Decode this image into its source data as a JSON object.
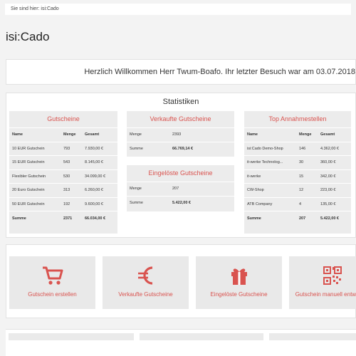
{
  "breadcrumb": "Sie sind hier: isi:Cado",
  "page_title": "isi:Cado",
  "welcome": "Herzlich Willkommen Herr Twum-Boafo. Ihr letzter Besuch war am 03.07.2018",
  "stats": {
    "title": "Statistiken",
    "gutscheine": {
      "title": "Gutscheine",
      "headers": [
        "Name",
        "Menge",
        "Gesamt"
      ],
      "rows": [
        [
          "10 EUR Gutschein",
          "793",
          "7.930,00 €"
        ],
        [
          "15 EUR Gutschein",
          "543",
          "8.145,00 €"
        ],
        [
          "Flexibler Gutschein",
          "530",
          "34.099,00 €"
        ],
        [
          "20 Euro Gutschein",
          "313",
          "6.260,00 €"
        ],
        [
          "50 EUR Gutschein",
          "192",
          "9.600,00 €"
        ]
      ],
      "summary": [
        "Summe",
        "2371",
        "66.034,00 €"
      ]
    },
    "verkaufte": {
      "title": "Verkaufte Gutscheine",
      "rows": [
        [
          "Menge",
          "2393"
        ],
        [
          "Summe",
          "66.769,14 €"
        ]
      ]
    },
    "eingeloeste": {
      "title": "Eingelöste Gutscheine",
      "rows": [
        [
          "Menge",
          "207"
        ],
        [
          "Summe",
          "5.422,00 €"
        ]
      ]
    },
    "annahmestellen": {
      "title": "Top Annahmestellen",
      "headers": [
        "Name",
        "Menge",
        "Gesamt"
      ],
      "rows": [
        [
          "isi:Cado Demo-Shop",
          "146",
          "4.362,00 €"
        ],
        [
          "it-werke Technolog...",
          "30",
          "360,00 €"
        ],
        [
          "it-werke",
          "15",
          "342,00 €"
        ],
        [
          "CW-Shop",
          "12",
          "223,00 €"
        ],
        [
          "ATB Company",
          "4",
          "135,00 €"
        ]
      ],
      "summary": [
        "Summe",
        "207",
        "5.422,00 €"
      ]
    }
  },
  "tiles": [
    {
      "label": "Gutschein erstellen",
      "icon": "cart-icon"
    },
    {
      "label": "Verkaufte Gutscheine",
      "icon": "euro-icon"
    },
    {
      "label": "Eingelöste Gutscheine",
      "icon": "gift-icon"
    },
    {
      "label": "Gutschein manuell entwerten",
      "icon": "qr-icon"
    }
  ],
  "colors": {
    "accent": "#d9534f",
    "panel_bg": "#ececec"
  }
}
